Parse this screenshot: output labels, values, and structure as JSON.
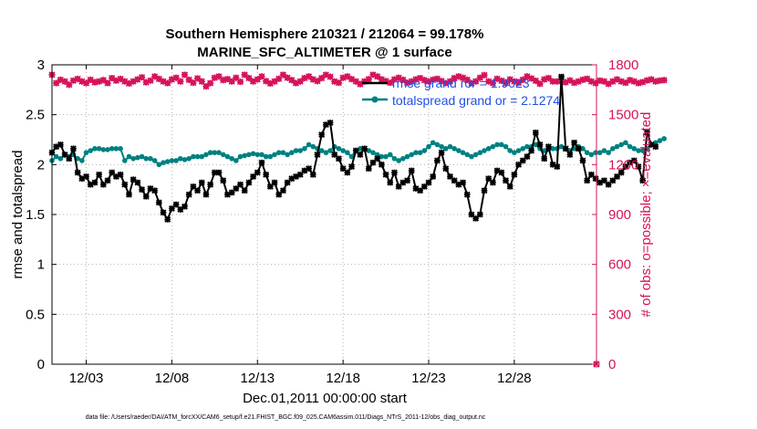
{
  "chart_data": {
    "type": "line",
    "title": "Southern Hemisphere 210321 / 212064 = 99.178%",
    "subtitle": "MARINE_SFC_ALTIMETER @ 1 surface",
    "xlabel": "Dec.01,2011 00:00:00 start",
    "ylabel": "rmse and totalspread",
    "y2label": "# of obs: o=possible; ×=evaluated",
    "footnote": "data file: /Users/raeder/DAI/ATM_forcXX/CAM6_setup/f.e21.FHIST_BGC.f09_025.CAM6assim.011/Diags_NTrS_2011-12/obs_diag_output.nc",
    "xlim": [
      0.0,
      31.8
    ],
    "x_ticks": [
      2,
      7,
      12,
      17,
      22,
      27
    ],
    "x_tick_labels": [
      "12/03",
      "12/08",
      "12/13",
      "12/18",
      "12/23",
      "12/28"
    ],
    "ylim": [
      0,
      3
    ],
    "y_ticks": [
      "0",
      "0.5",
      "1",
      "1.5",
      "2",
      "2.5",
      "3"
    ],
    "y2lim": [
      0,
      1800
    ],
    "y2_ticks": [
      "0",
      "300",
      "600",
      "900",
      "1200",
      "1500",
      "1800"
    ],
    "x_step": 0.25,
    "colors": {
      "rmse": "#000000",
      "spread": "#008080",
      "obs": "#d6135b",
      "legend_text": "#1f4fe8"
    },
    "series": [
      {
        "name": "rmse",
        "legend": "rmse grand ror = 1.9023",
        "axis": "left",
        "values": [
          2.12,
          2.18,
          2.2,
          2.1,
          2.06,
          2.16,
          1.92,
          1.86,
          1.88,
          1.8,
          1.82,
          1.9,
          1.8,
          1.84,
          1.92,
          1.88,
          1.9,
          1.8,
          1.7,
          1.85,
          1.82,
          1.75,
          1.68,
          1.76,
          1.74,
          1.62,
          1.52,
          1.45,
          1.56,
          1.6,
          1.55,
          1.58,
          1.7,
          1.78,
          1.74,
          1.82,
          1.7,
          1.8,
          1.92,
          1.92,
          1.84,
          1.7,
          1.72,
          1.76,
          1.8,
          1.74,
          1.82,
          1.88,
          1.92,
          2.02,
          1.9,
          1.78,
          1.82,
          1.7,
          1.74,
          1.82,
          1.86,
          1.88,
          1.9,
          1.94,
          1.96,
          1.9,
          2.1,
          2.3,
          2.4,
          2.42,
          2.1,
          2.06,
          1.96,
          1.92,
          1.98,
          2.14,
          2.1,
          2.16,
          1.96,
          2.02,
          2.06,
          2.0,
          1.9,
          1.82,
          1.92,
          1.78,
          1.82,
          1.84,
          1.94,
          1.76,
          1.74,
          1.78,
          1.82,
          1.88,
          2.04,
          2.12,
          1.96,
          1.88,
          1.84,
          1.8,
          1.82,
          1.7,
          1.5,
          1.46,
          1.5,
          1.74,
          1.86,
          1.82,
          1.94,
          1.92,
          1.84,
          1.78,
          1.9,
          2.0,
          2.04,
          2.08,
          2.14,
          2.32,
          2.2,
          2.06,
          2.18,
          2.0,
          1.98,
          2.88,
          2.16,
          2.1,
          2.22,
          2.16,
          2.04,
          1.84,
          1.9,
          1.86,
          1.82,
          1.84,
          1.8,
          1.84,
          1.88,
          1.92,
          1.98,
          2.02,
          2.04,
          1.98,
          1.84,
          2.32,
          2.2,
          2.18
        ]
      },
      {
        "name": "totalspread",
        "legend": "totalspread grand or = 2.1274",
        "axis": "left",
        "values": [
          2.04,
          2.08,
          2.06,
          2.1,
          2.08,
          2.1,
          2.06,
          2.04,
          2.12,
          2.14,
          2.16,
          2.16,
          2.15,
          2.15,
          2.16,
          2.16,
          2.16,
          2.04,
          2.08,
          2.06,
          2.07,
          2.08,
          2.06,
          2.06,
          2.04,
          2.0,
          2.02,
          2.03,
          2.04,
          2.04,
          2.06,
          2.05,
          2.06,
          2.08,
          2.08,
          2.08,
          2.1,
          2.12,
          2.12,
          2.12,
          2.1,
          2.08,
          2.06,
          2.04,
          2.08,
          2.09,
          2.1,
          2.11,
          2.1,
          2.1,
          2.08,
          2.08,
          2.1,
          2.12,
          2.12,
          2.1,
          2.12,
          2.14,
          2.14,
          2.16,
          2.2,
          2.18,
          2.16,
          2.14,
          2.12,
          2.14,
          2.18,
          2.16,
          2.14,
          2.12,
          2.08,
          2.14,
          2.16,
          2.16,
          2.14,
          2.12,
          2.1,
          2.08,
          2.08,
          2.1,
          2.06,
          2.04,
          2.06,
          2.08,
          2.1,
          2.12,
          2.12,
          2.14,
          2.18,
          2.22,
          2.2,
          2.18,
          2.16,
          2.18,
          2.16,
          2.14,
          2.12,
          2.1,
          2.08,
          2.1,
          2.12,
          2.14,
          2.16,
          2.18,
          2.2,
          2.2,
          2.18,
          2.14,
          2.12,
          2.14,
          2.16,
          2.18,
          2.18,
          2.2,
          2.16,
          2.14,
          2.15,
          2.16,
          2.16,
          2.18,
          2.16,
          2.14,
          2.16,
          2.18,
          2.16,
          2.12,
          2.1,
          2.12,
          2.12,
          2.14,
          2.12,
          2.16,
          2.18,
          2.2,
          2.22,
          2.18,
          2.16,
          2.14,
          2.14,
          2.16,
          2.2,
          2.22,
          2.24,
          2.26
        ]
      },
      {
        "name": "obs possible",
        "axis": "right",
        "marker": "circle",
        "values": [
          1740,
          1690,
          1710,
          1700,
          1680,
          1705,
          1715,
          1700,
          1690,
          1710,
          1695,
          1700,
          1708,
          1690,
          1720,
          1705,
          1715,
          1700,
          1688,
          1700,
          1712,
          1725,
          1695,
          1705,
          1730,
          1715,
          1700,
          1690,
          1712,
          1722,
          1700,
          1740,
          1710,
          1692,
          1718,
          1700,
          1670,
          1690,
          1722,
          1730,
          1708,
          1714,
          1700,
          1722,
          1698,
          1740,
          1720,
          1700,
          1712,
          1730,
          1702,
          1688,
          1700,
          1716,
          1740,
          1722,
          1708,
          1690,
          1700,
          1720,
          1730,
          1712,
          1702,
          1720,
          1740,
          1728,
          1700,
          1692,
          1722,
          1730,
          1714,
          1700,
          1684,
          1700,
          1714,
          1740,
          1730,
          1712,
          1702,
          1692,
          1712,
          1722,
          1710,
          1692,
          1700,
          1712,
          1720,
          1708,
          1700,
          1710,
          1716,
          1702,
          1690,
          1700,
          1720,
          1730,
          1722,
          1710,
          1690,
          1700,
          1722,
          1738,
          1700,
          1690,
          1716,
          1704,
          1690,
          1712,
          1700,
          1692,
          1710,
          1730,
          1718,
          1704,
          1686,
          1712,
          1720,
          1700,
          1700,
          1702,
          1695,
          1706,
          1692,
          1700,
          1710,
          1716,
          1700,
          1690,
          1705,
          1700,
          1685,
          1700,
          1712,
          1700,
          1692,
          1708,
          1700,
          1690,
          1696,
          1706,
          1712,
          1700,
          1705,
          1708
        ]
      },
      {
        "name": "obs evaluated",
        "axis": "right",
        "marker": "x",
        "values": [
          1740,
          1690,
          1710,
          1700,
          1680,
          1705,
          1715,
          1700,
          1690,
          1710,
          1695,
          1700,
          1708,
          1690,
          1720,
          1705,
          1715,
          1700,
          1688,
          1700,
          1712,
          1725,
          1695,
          1705,
          1730,
          1715,
          1700,
          1690,
          1712,
          1722,
          1700,
          1740,
          1710,
          1692,
          1718,
          1700,
          1670,
          1690,
          1722,
          1730,
          1708,
          1714,
          1700,
          1722,
          1698,
          1740,
          1720,
          1700,
          1712,
          1730,
          1702,
          1688,
          1700,
          1716,
          1740,
          1722,
          1708,
          1690,
          1700,
          1720,
          1730,
          1712,
          1702,
          1720,
          1740,
          1728,
          1700,
          1692,
          1722,
          1730,
          1714,
          1700,
          1684,
          1700,
          1714,
          1740,
          1730,
          1712,
          1702,
          1692,
          1712,
          1722,
          1710,
          1692,
          1700,
          1712,
          1720,
          1708,
          1700,
          1710,
          1716,
          1702,
          1690,
          1700,
          1720,
          1730,
          1722,
          1710,
          1690,
          1700,
          1722,
          1738,
          1700,
          1690,
          1716,
          1704,
          1690,
          1712,
          1700,
          1692,
          1710,
          1730,
          1718,
          1704,
          1686,
          1712,
          1720,
          1700,
          1700,
          1702,
          1695,
          1706,
          1692,
          1700,
          1710,
          1716,
          1700,
          1690,
          1705,
          1700,
          1685,
          1700,
          1712,
          1700,
          1692,
          1708,
          1700,
          1690,
          1696,
          1706,
          1712,
          1700,
          1705,
          1708
        ]
      }
    ],
    "outlier": {
      "x": 31.8,
      "y2": 0
    }
  }
}
